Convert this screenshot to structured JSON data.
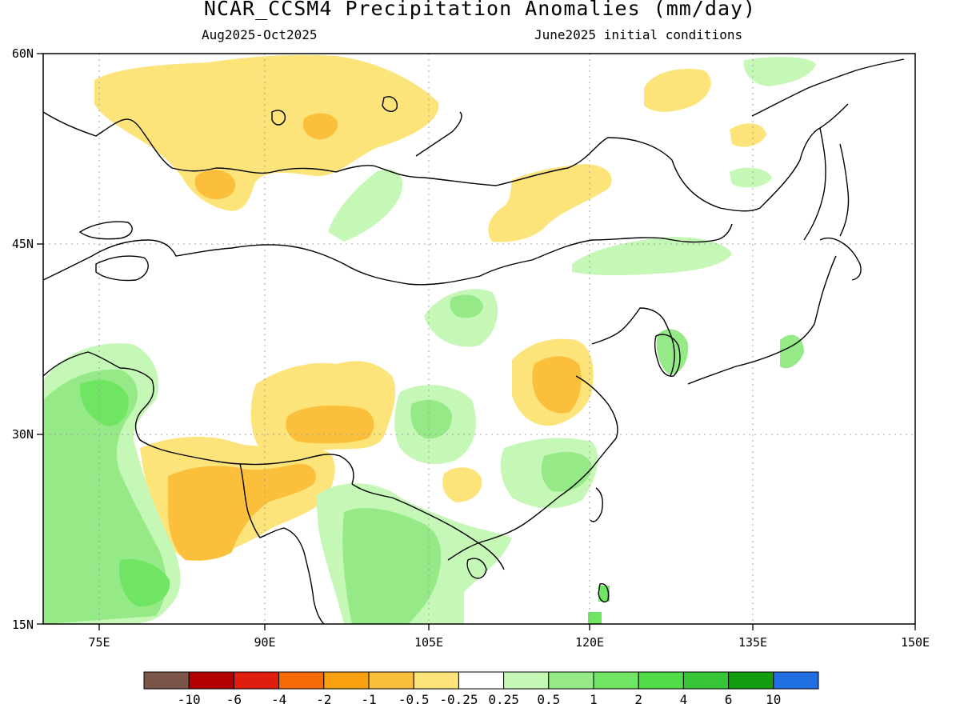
{
  "header": {
    "title": "NCAR_CCSM4 Precipitation Anomalies (mm/day)",
    "period": "Aug2025-Oct2025",
    "init": "June2025 initial conditions"
  },
  "map": {
    "lat_labels": [
      "60N",
      "45N",
      "30N",
      "15N"
    ],
    "lon_labels": [
      "75E",
      "90E",
      "105E",
      "120E",
      "135E",
      "150E"
    ]
  },
  "colorbar": {
    "colors": [
      "#7a5548",
      "#b30000",
      "#e01e10",
      "#f86a08",
      "#f9a010",
      "#fbbf3c",
      "#fde47a",
      "#ffffff",
      "#c5f7b6",
      "#95ea87",
      "#70e463",
      "#4fdc48",
      "#36c636",
      "#129c0e",
      "#1f6ee2"
    ],
    "labels": [
      "-10",
      "-6",
      "-4",
      "-2",
      "-1",
      "-0.5",
      "-0.25",
      "0.25",
      "0.5",
      "1",
      "2",
      "4",
      "6",
      "10"
    ]
  }
}
